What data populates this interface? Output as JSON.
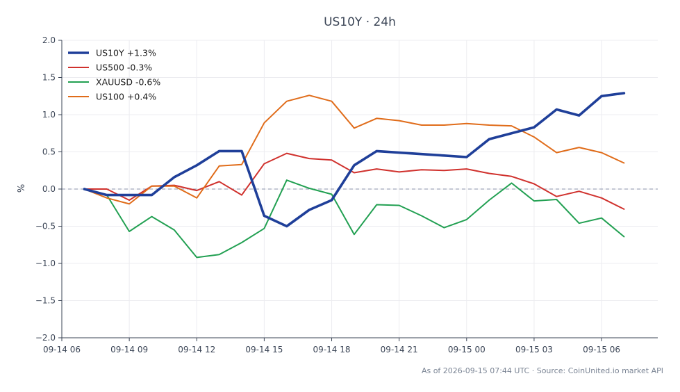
{
  "chart_data": {
    "type": "line",
    "title": "US10Y · 24h",
    "ylabel": "%",
    "xlabel": "",
    "ylim": [
      -2.0,
      2.0
    ],
    "yticks": [
      "2.0",
      "1.5",
      "1.0",
      "0.5",
      "0.0",
      "−0.5",
      "−1.0",
      "−1.5",
      "−2.0"
    ],
    "ytick_values": [
      2.0,
      1.5,
      1.0,
      0.5,
      0.0,
      -0.5,
      -1.0,
      -1.5,
      -2.0
    ],
    "xlim": [
      "09-14 06:00",
      "09-15 08:30"
    ],
    "xticks": [
      "09-14 06",
      "09-14 09",
      "09-14 12",
      "09-14 15",
      "09-14 18",
      "09-14 21",
      "09-15 00",
      "09-15 03",
      "09-15 06"
    ],
    "xtick_values": [
      "09-14 06:00",
      "09-14 09:00",
      "09-14 12:00",
      "09-14 15:00",
      "09-14 18:00",
      "09-14 21:00",
      "09-15 00:00",
      "09-15 03:00",
      "09-15 06:00"
    ],
    "grid": true,
    "legend_position": "top-left",
    "zero_line": true,
    "x": [
      "09-14 07:00",
      "09-14 08:00",
      "09-14 09:00",
      "09-14 10:00",
      "09-14 11:00",
      "09-14 12:00",
      "09-14 13:00",
      "09-14 14:00",
      "09-14 15:00",
      "09-14 16:00",
      "09-14 17:00",
      "09-14 18:00",
      "09-14 19:00",
      "09-14 20:00",
      "09-14 21:00",
      "09-14 22:00",
      "09-14 23:00",
      "09-15 00:00",
      "09-15 01:00",
      "09-15 02:00",
      "09-15 03:00",
      "09-15 04:00",
      "09-15 05:00",
      "09-15 06:00",
      "09-15 07:00"
    ],
    "series": [
      {
        "name": "US10Y +1.3%",
        "color": "#1f3f99",
        "emphasis": true,
        "values": [
          0.0,
          -0.08,
          -0.08,
          -0.08,
          0.16,
          0.32,
          0.51,
          0.51,
          -0.36,
          -0.5,
          -0.28,
          -0.15,
          0.32,
          0.51,
          0.49,
          0.47,
          0.45,
          0.43,
          0.67,
          0.75,
          0.83,
          1.07,
          0.99,
          1.25,
          1.29
        ]
      },
      {
        "name": "US500 -0.3%",
        "color": "#d0312d",
        "emphasis": false,
        "values": [
          0.0,
          0.0,
          -0.15,
          0.04,
          0.05,
          -0.02,
          0.1,
          -0.08,
          0.34,
          0.48,
          0.41,
          0.39,
          0.22,
          0.27,
          0.23,
          0.26,
          0.25,
          0.27,
          0.21,
          0.17,
          0.07,
          -0.1,
          -0.03,
          -0.12,
          -0.27
        ]
      },
      {
        "name": "XAUUSD -0.6%",
        "color": "#22a052",
        "emphasis": false,
        "values": [
          0.0,
          -0.08,
          -0.57,
          -0.37,
          -0.55,
          -0.92,
          -0.88,
          -0.72,
          -0.53,
          0.12,
          0.01,
          -0.07,
          -0.61,
          -0.21,
          -0.22,
          -0.36,
          -0.52,
          -0.41,
          -0.15,
          0.08,
          -0.16,
          -0.14,
          -0.46,
          -0.39,
          -0.64
        ]
      },
      {
        "name": "US100 +0.4%",
        "color": "#e06c1a",
        "emphasis": false,
        "values": [
          0.0,
          -0.12,
          -0.2,
          0.04,
          0.04,
          -0.12,
          0.31,
          0.33,
          0.89,
          1.18,
          1.26,
          1.18,
          0.82,
          0.95,
          0.92,
          0.86,
          0.86,
          0.88,
          0.86,
          0.85,
          0.7,
          0.49,
          0.56,
          0.49,
          0.35
        ]
      }
    ],
    "footnote": "As of 2026-09-15 07:44 UTC · Source: CoinUnited.io market API"
  }
}
